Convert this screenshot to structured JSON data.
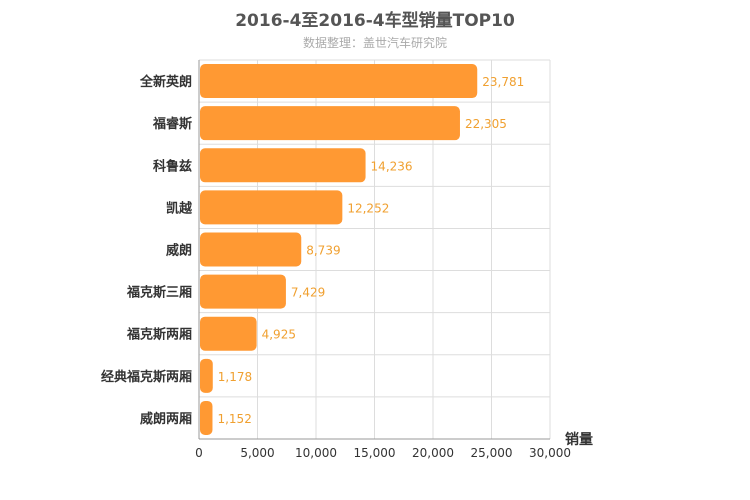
{
  "chart_data": {
    "type": "bar",
    "orientation": "horizontal",
    "title": "2016-4至2016-4车型销量TOP10",
    "subtitle": "数据整理：盖世汽车研究院",
    "xlabel": "销量",
    "ylabel": "",
    "xlim": [
      0,
      30000
    ],
    "xticks": [
      "0",
      "5,000",
      "10,000",
      "15,000",
      "20,000",
      "25,000",
      "30,000"
    ],
    "grid": true,
    "legend": "none",
    "bar_color": "#FF9933",
    "label_color": "#F0A030",
    "categories": [
      "全新英朗",
      "福睿斯",
      "科鲁兹",
      "凯越",
      "威朗",
      "福克斯三厢",
      "福克斯两厢",
      "经典福克斯两厢",
      "威朗两厢"
    ],
    "values": [
      23781,
      22305,
      14236,
      12252,
      8739,
      7429,
      4925,
      1178,
      1152
    ],
    "value_labels": [
      "23,781",
      "22,305",
      "14,236",
      "12,252",
      "8,739",
      "7,429",
      "4,925",
      "1,178",
      "1,152"
    ]
  }
}
